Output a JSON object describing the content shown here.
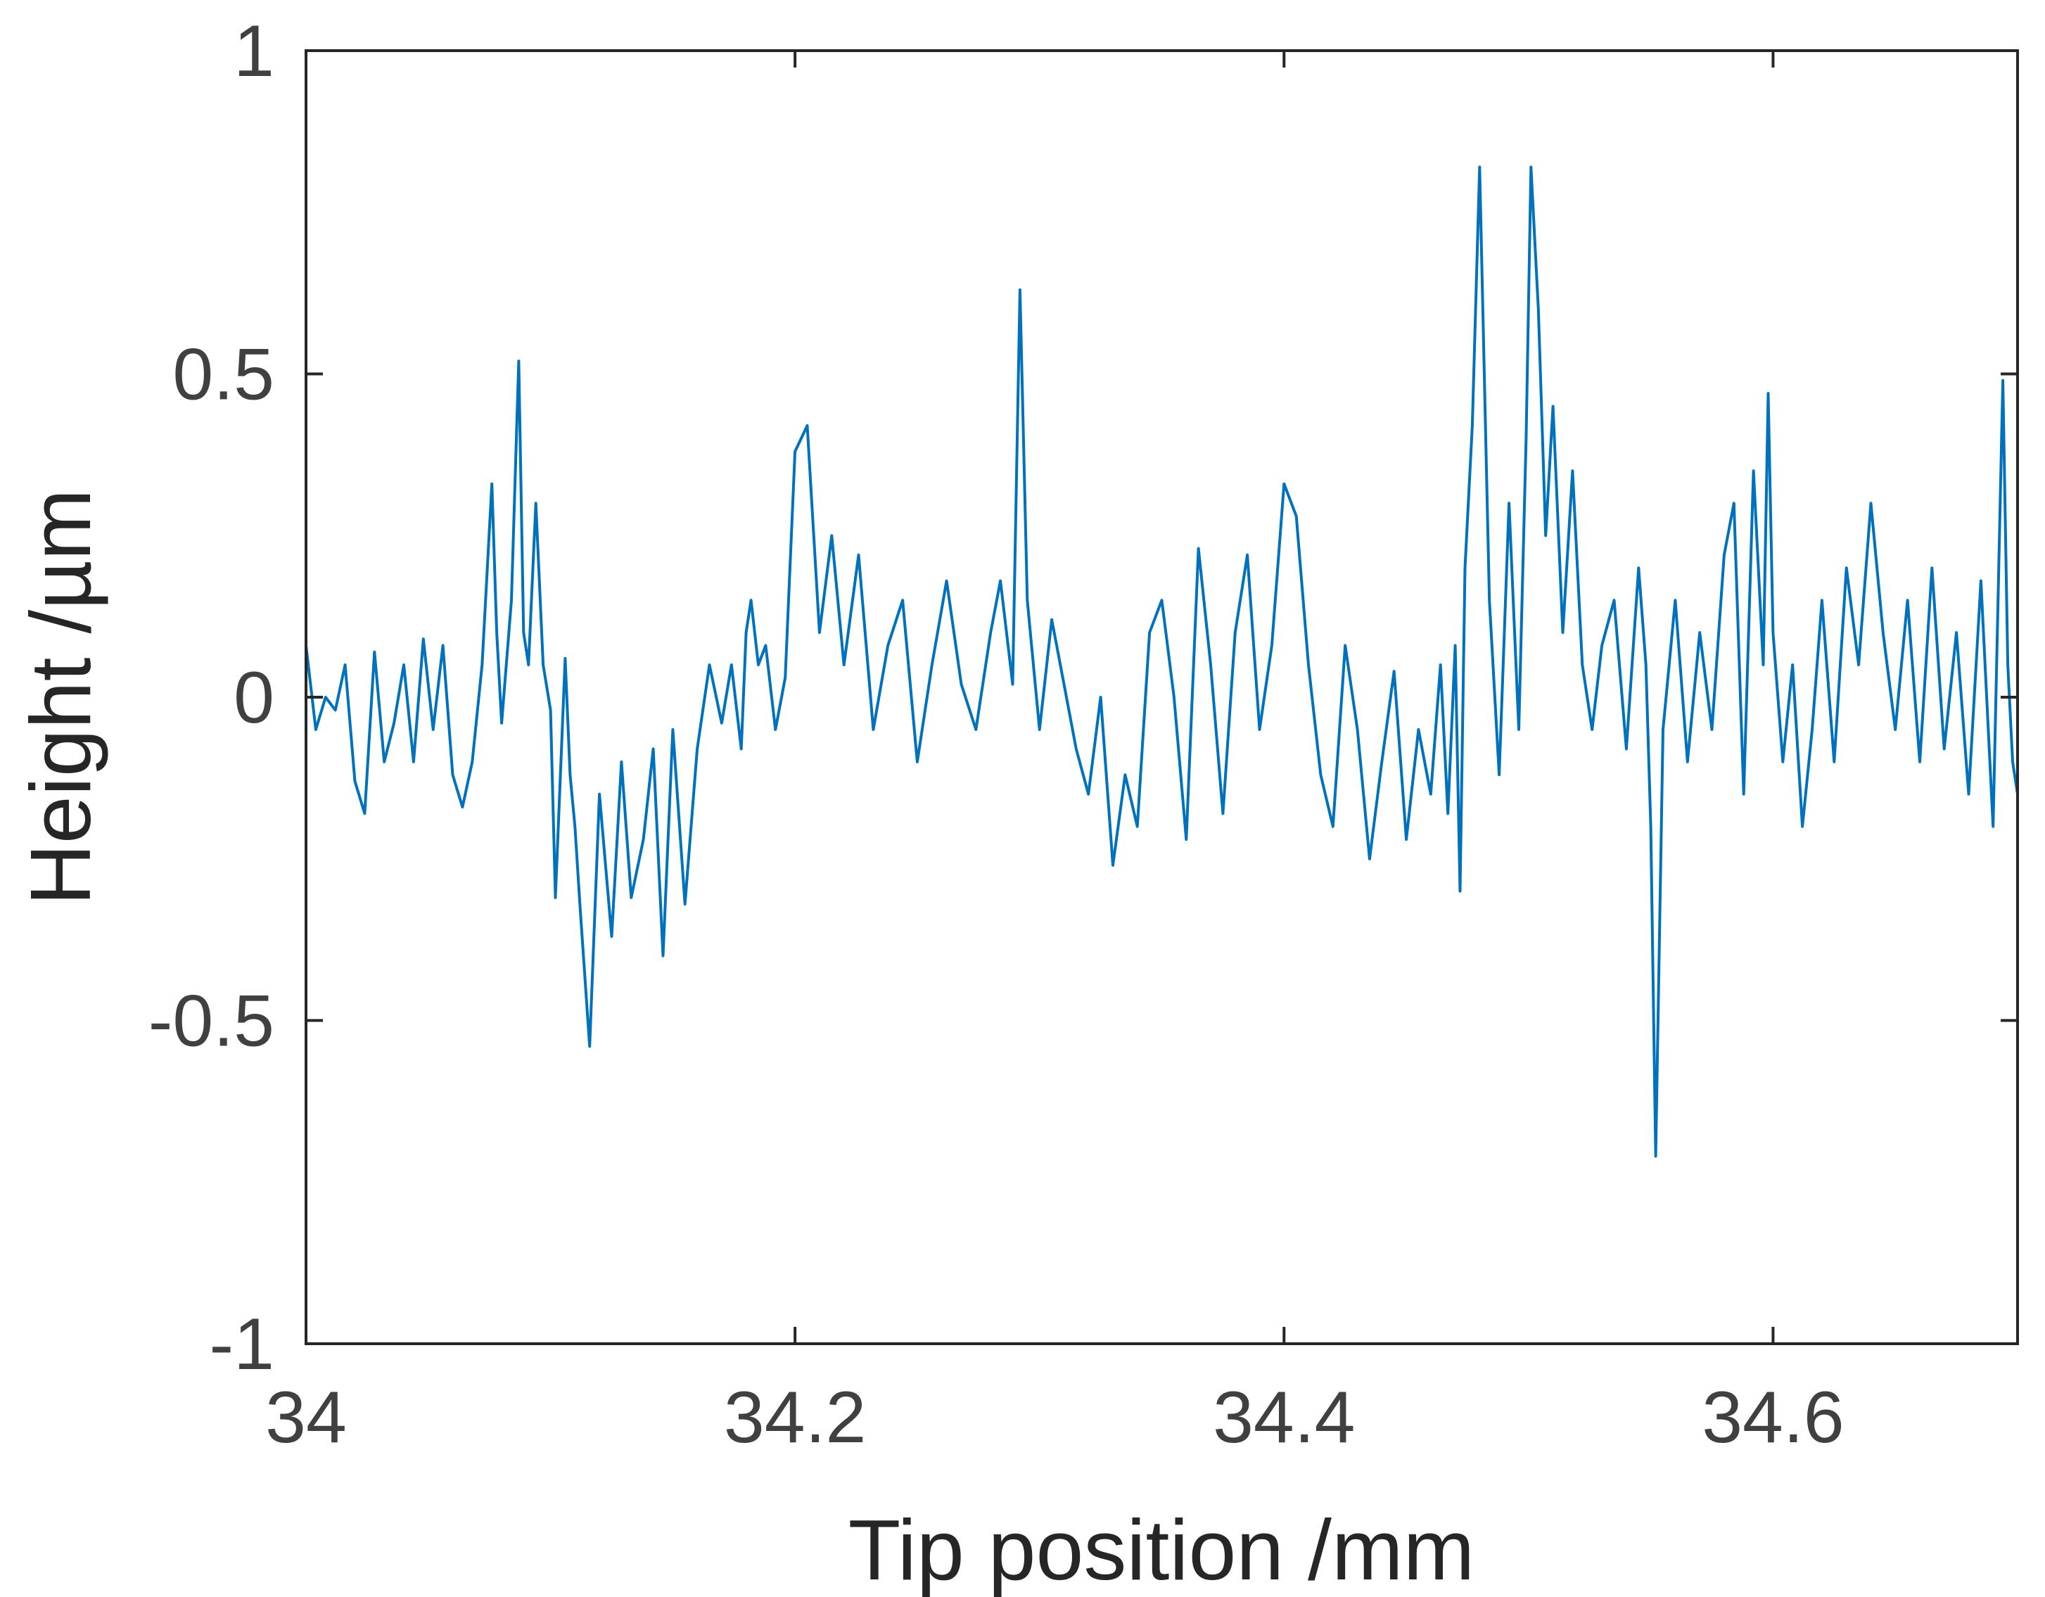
{
  "chart_data": {
    "type": "line",
    "title": "",
    "xlabel": "Tip position /mm",
    "ylabel": "Height /µm",
    "xlim": [
      34.0,
      34.7
    ],
    "ylim": [
      -1.0,
      1.0
    ],
    "x_ticks": [
      34.0,
      34.2,
      34.4,
      34.6
    ],
    "x_tick_labels": [
      "34",
      "34.2",
      "34.4",
      "34.6"
    ],
    "y_ticks": [
      -1.0,
      -0.5,
      0.0,
      0.5,
      1.0
    ],
    "y_tick_labels": [
      "-1",
      "-0.5",
      "0",
      "0.5",
      "1"
    ],
    "grid": false,
    "legend": "none",
    "line_color": "#0072BD",
    "series": [
      {
        "x": [
          34.0,
          34.004,
          34.008,
          34.012,
          34.016,
          34.02,
          34.024,
          34.028,
          34.032,
          34.036,
          34.04,
          34.044,
          34.048,
          34.052,
          34.056,
          34.06,
          34.064,
          34.068,
          34.072,
          34.076,
          34.078,
          34.08,
          34.084,
          34.087,
          34.089,
          34.091,
          34.094,
          34.097,
          34.1,
          34.102,
          34.106,
          34.108,
          34.11,
          34.112,
          34.116,
          34.12,
          34.125,
          34.129,
          34.133,
          34.138,
          34.142,
          34.146,
          34.15,
          34.155,
          34.16,
          34.165,
          34.17,
          34.174,
          34.178,
          34.18,
          34.182,
          34.185,
          34.188,
          34.192,
          34.196,
          34.2,
          34.205,
          34.21,
          34.215,
          34.22,
          34.226,
          34.232,
          34.238,
          34.244,
          34.25,
          34.256,
          34.262,
          34.268,
          34.274,
          34.28,
          34.284,
          34.289,
          34.292,
          34.295,
          34.3,
          34.305,
          34.31,
          34.315,
          34.32,
          34.325,
          34.33,
          34.335,
          34.34,
          34.345,
          34.35,
          34.355,
          34.36,
          34.365,
          34.37,
          34.375,
          34.38,
          34.385,
          34.39,
          34.395,
          34.4,
          34.405,
          34.41,
          34.415,
          34.42,
          34.425,
          34.43,
          34.435,
          34.44,
          34.445,
          34.45,
          34.455,
          34.46,
          34.464,
          34.467,
          34.47,
          34.472,
          34.474,
          34.477,
          34.48,
          34.484,
          34.488,
          34.492,
          34.496,
          34.499,
          34.501,
          34.504,
          34.507,
          34.51,
          34.514,
          34.518,
          34.522,
          34.526,
          34.53,
          34.535,
          34.54,
          34.545,
          34.548,
          34.55,
          34.552,
          34.555,
          34.56,
          34.565,
          34.57,
          34.575,
          34.58,
          34.584,
          34.588,
          34.592,
          34.596,
          34.598,
          34.6,
          34.604,
          34.608,
          34.612,
          34.616,
          34.62,
          34.625,
          34.63,
          34.635,
          34.64,
          34.645,
          34.65,
          34.655,
          34.66,
          34.665,
          34.67,
          34.675,
          34.68,
          34.685,
          34.69,
          34.694,
          34.696,
          34.698,
          34.7
        ],
        "y": [
          0.08,
          -0.05,
          0.0,
          -0.02,
          0.05,
          -0.13,
          -0.18,
          0.07,
          -0.1,
          -0.04,
          0.05,
          -0.1,
          0.09,
          -0.05,
          0.08,
          -0.12,
          -0.17,
          -0.1,
          0.05,
          0.33,
          0.1,
          -0.04,
          0.15,
          0.52,
          0.1,
          0.05,
          0.3,
          0.05,
          -0.02,
          -0.31,
          0.06,
          -0.12,
          -0.2,
          -0.32,
          -0.54,
          -0.15,
          -0.37,
          -0.1,
          -0.31,
          -0.22,
          -0.08,
          -0.4,
          -0.05,
          -0.32,
          -0.08,
          0.05,
          -0.04,
          0.05,
          -0.08,
          0.1,
          0.15,
          0.05,
          0.08,
          -0.05,
          0.03,
          0.38,
          0.42,
          0.1,
          0.25,
          0.05,
          0.22,
          -0.05,
          0.08,
          0.15,
          -0.1,
          0.05,
          0.18,
          0.02,
          -0.05,
          0.1,
          0.18,
          0.02,
          0.63,
          0.15,
          -0.05,
          0.12,
          0.02,
          -0.08,
          -0.15,
          0.0,
          -0.26,
          -0.12,
          -0.2,
          0.1,
          0.15,
          0.0,
          -0.22,
          0.23,
          0.05,
          -0.18,
          0.1,
          0.22,
          -0.05,
          0.08,
          0.33,
          0.28,
          0.05,
          -0.12,
          -0.2,
          0.08,
          -0.05,
          -0.25,
          -0.1,
          0.04,
          -0.22,
          -0.05,
          -0.15,
          0.05,
          -0.18,
          0.08,
          -0.3,
          0.2,
          0.42,
          0.82,
          0.15,
          -0.12,
          0.3,
          -0.05,
          0.4,
          0.82,
          0.6,
          0.25,
          0.45,
          0.1,
          0.35,
          0.05,
          -0.05,
          0.08,
          0.15,
          -0.08,
          0.2,
          0.05,
          -0.2,
          -0.71,
          -0.05,
          0.15,
          -0.1,
          0.1,
          -0.05,
          0.22,
          0.3,
          -0.15,
          0.35,
          0.05,
          0.47,
          0.1,
          -0.1,
          0.05,
          -0.2,
          -0.05,
          0.15,
          -0.1,
          0.2,
          0.05,
          0.3,
          0.1,
          -0.05,
          0.15,
          -0.1,
          0.2,
          -0.08,
          0.1,
          -0.15,
          0.18,
          -0.2,
          0.49,
          0.05,
          -0.1,
          -0.15
        ]
      }
    ]
  }
}
